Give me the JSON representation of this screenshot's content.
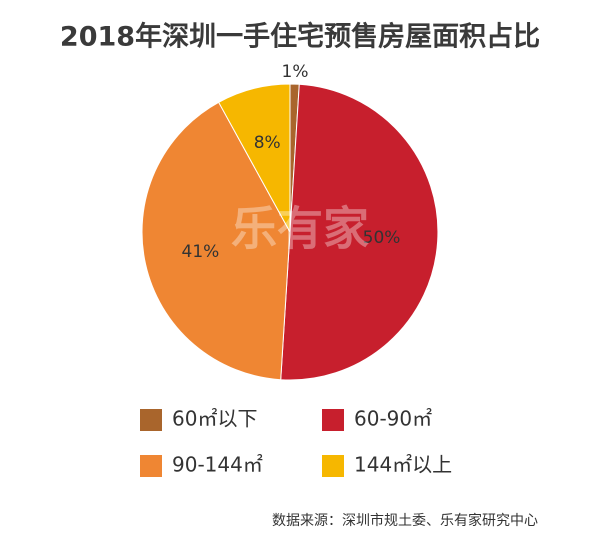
{
  "chart_data": {
    "type": "pie",
    "title": "2018年深圳一手住宅预售房屋面积占比",
    "categories": [
      "60㎡以下",
      "60-90㎡",
      "90-144㎡",
      "144㎡以上"
    ],
    "values": [
      1,
      50,
      41,
      8
    ],
    "value_labels": [
      "1%",
      "50%",
      "41%",
      "8%"
    ],
    "colors": [
      "#a9652c",
      "#c71f2d",
      "#ef8633",
      "#f6b700"
    ],
    "source": "数据来源：深圳市规土委、乐有家研究中心",
    "watermark": "乐有家"
  }
}
